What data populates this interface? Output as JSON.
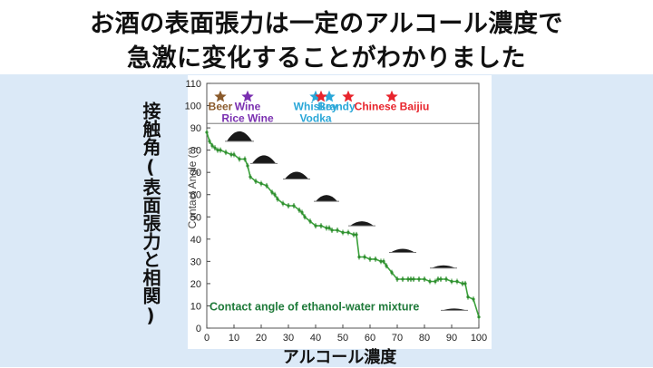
{
  "headline": {
    "line1": "お酒の表面張力は一定のアルコール濃度で",
    "line2": "急激に変化することがわかりました"
  },
  "side_label": "接触角(表面張力と相関)",
  "x_label": "アルコール濃度",
  "chart_data": {
    "type": "line",
    "ylabel": "Contact Angle (°)",
    "xlim": [
      0,
      100
    ],
    "ylim": [
      0,
      110
    ],
    "x_ticks": [
      0,
      10,
      20,
      30,
      40,
      50,
      60,
      70,
      80,
      90,
      100
    ],
    "y_ticks": [
      0,
      10,
      20,
      30,
      40,
      50,
      60,
      70,
      80,
      90,
      100,
      110
    ],
    "reference_line_y": 92,
    "annotation": "Contact angle of ethanol-water mixture",
    "series": [
      {
        "x": [
          0,
          1,
          2,
          3,
          4,
          5,
          7,
          9,
          10,
          12,
          14,
          15,
          16,
          18,
          20,
          22,
          24,
          25,
          26,
          28,
          30,
          32,
          34,
          35,
          36,
          38,
          40,
          42,
          44,
          45,
          46,
          48,
          50,
          52,
          54,
          55,
          56,
          58,
          60,
          62,
          64,
          65,
          66,
          68,
          70,
          72,
          74,
          75,
          76,
          78,
          80,
          82,
          84,
          85,
          86,
          88,
          90,
          92,
          94,
          95,
          96,
          98,
          100
        ],
        "y": [
          88,
          84,
          82,
          81,
          80,
          80,
          79,
          78,
          78,
          76,
          76,
          73,
          68,
          66,
          65,
          64,
          61,
          60,
          58,
          56,
          55,
          55,
          53,
          52,
          50,
          48,
          46,
          46,
          45,
          45,
          44,
          44,
          43,
          43,
          42,
          42,
          32,
          32,
          31,
          31,
          30,
          30,
          28,
          25,
          22,
          22,
          22,
          22,
          22,
          22,
          22,
          21,
          21,
          22,
          22,
          22,
          21,
          21,
          20,
          20,
          14,
          13,
          5
        ]
      }
    ],
    "markers": [
      {
        "label": "Beer",
        "x": 5,
        "color": "#8a5a2b"
      },
      {
        "label": "Wine\nRice Wine",
        "x": 15,
        "color": "#7a2fb0"
      },
      {
        "label": "Whiskey\nVodka",
        "x": 40,
        "color": "#2aa7d8"
      },
      {
        "label": "Brandy",
        "x": 45,
        "color": "#2aa7d8"
      },
      {
        "label": "",
        "x": 42,
        "color": "#e8242c"
      },
      {
        "label": "",
        "x": 52,
        "color": "#e8242c"
      },
      {
        "label": "Chinese Baijiu",
        "x": 68,
        "color": "#e8242c"
      }
    ]
  }
}
